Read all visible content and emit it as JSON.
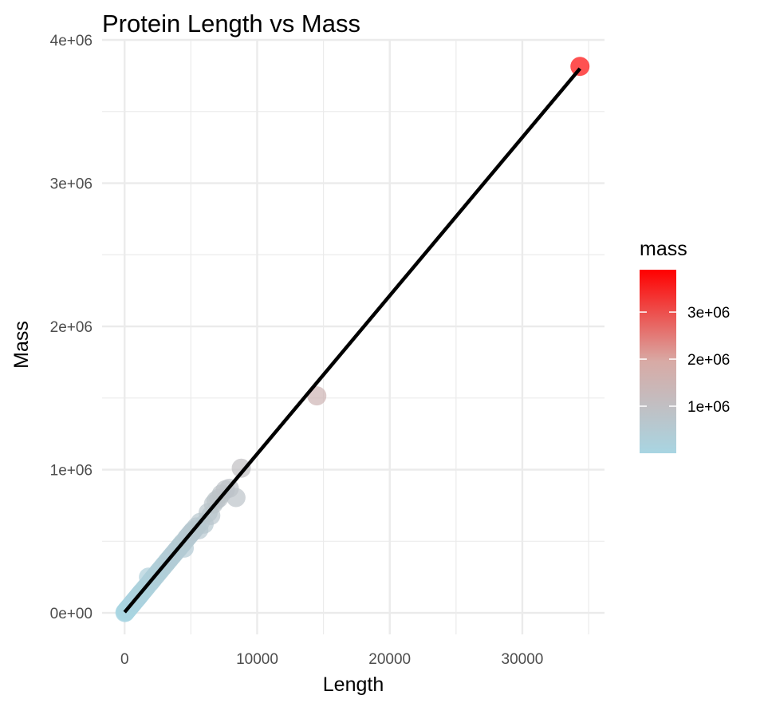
{
  "chart_data": {
    "type": "scatter",
    "title": "Protein Length vs Mass",
    "xlabel": "Length",
    "ylabel": "Mass",
    "xlim": [
      -1700,
      36200
    ],
    "ylim": [
      -150000,
      4000000
    ],
    "xticks": [
      0,
      10000,
      20000,
      30000
    ],
    "xtick_labels": [
      "0",
      "10000",
      "20000",
      "30000"
    ],
    "yticks": [
      0,
      1000000,
      2000000,
      3000000,
      4000000
    ],
    "ytick_labels": [
      "0e+00",
      "1e+06",
      "2e+06",
      "3e+06",
      "4e+06"
    ],
    "grid": true,
    "colors": {
      "low": "#a8d5e2",
      "mid": "#d8aaa5",
      "high": "#ff0000",
      "line": "#000000",
      "grid": "#ebebeb"
    },
    "legend": {
      "title": "mass",
      "placement": "right",
      "min": 0,
      "max": 3900000,
      "breaks": [
        1000000,
        2000000,
        3000000
      ],
      "labels": [
        "1e+06",
        "2e+06",
        "3e+06"
      ]
    },
    "trend_line": {
      "x": [
        0,
        34350
      ],
      "y": [
        5000,
        3800000
      ]
    },
    "points": [
      {
        "x": 20,
        "y": 2000
      },
      {
        "x": 50,
        "y": 5000
      },
      {
        "x": 80,
        "y": 9000
      },
      {
        "x": 120,
        "y": 14000
      },
      {
        "x": 160,
        "y": 18000
      },
      {
        "x": 200,
        "y": 22000
      },
      {
        "x": 250,
        "y": 28000
      },
      {
        "x": 300,
        "y": 33000
      },
      {
        "x": 350,
        "y": 39000
      },
      {
        "x": 400,
        "y": 44000
      },
      {
        "x": 450,
        "y": 50000
      },
      {
        "x": 500,
        "y": 55000
      },
      {
        "x": 550,
        "y": 61000
      },
      {
        "x": 600,
        "y": 66000
      },
      {
        "x": 650,
        "y": 72000
      },
      {
        "x": 700,
        "y": 78000
      },
      {
        "x": 750,
        "y": 83000
      },
      {
        "x": 800,
        "y": 89000
      },
      {
        "x": 850,
        "y": 94000
      },
      {
        "x": 900,
        "y": 100000
      },
      {
        "x": 950,
        "y": 105000
      },
      {
        "x": 1000,
        "y": 111000
      },
      {
        "x": 1050,
        "y": 116000
      },
      {
        "x": 1100,
        "y": 122000
      },
      {
        "x": 1150,
        "y": 128000
      },
      {
        "x": 1200,
        "y": 133000
      },
      {
        "x": 1250,
        "y": 139000
      },
      {
        "x": 1300,
        "y": 145000
      },
      {
        "x": 1400,
        "y": 155000
      },
      {
        "x": 1500,
        "y": 166000
      },
      {
        "x": 1600,
        "y": 178000
      },
      {
        "x": 1700,
        "y": 188000
      },
      {
        "x": 1800,
        "y": 250000
      },
      {
        "x": 1900,
        "y": 210000
      },
      {
        "x": 2000,
        "y": 222000
      },
      {
        "x": 2100,
        "y": 233000
      },
      {
        "x": 2200,
        "y": 245000
      },
      {
        "x": 2300,
        "y": 256000
      },
      {
        "x": 2400,
        "y": 267000
      },
      {
        "x": 2500,
        "y": 278000
      },
      {
        "x": 2600,
        "y": 290000
      },
      {
        "x": 2700,
        "y": 300000
      },
      {
        "x": 2800,
        "y": 312000
      },
      {
        "x": 2900,
        "y": 322000
      },
      {
        "x": 3000,
        "y": 335000
      },
      {
        "x": 3100,
        "y": 344000
      },
      {
        "x": 3200,
        "y": 356000
      },
      {
        "x": 3300,
        "y": 368000
      },
      {
        "x": 3400,
        "y": 378000
      },
      {
        "x": 3500,
        "y": 390000
      },
      {
        "x": 3600,
        "y": 400000
      },
      {
        "x": 3700,
        "y": 412000
      },
      {
        "x": 3800,
        "y": 422000
      },
      {
        "x": 3900,
        "y": 434000
      },
      {
        "x": 4000,
        "y": 445000
      },
      {
        "x": 4100,
        "y": 455000
      },
      {
        "x": 4200,
        "y": 468000
      },
      {
        "x": 4300,
        "y": 478000
      },
      {
        "x": 4400,
        "y": 490000
      },
      {
        "x": 4500,
        "y": 452000
      },
      {
        "x": 4600,
        "y": 510000
      },
      {
        "x": 4700,
        "y": 524000
      },
      {
        "x": 4800,
        "y": 534000
      },
      {
        "x": 4900,
        "y": 546000
      },
      {
        "x": 5000,
        "y": 556000
      },
      {
        "x": 5100,
        "y": 568000
      },
      {
        "x": 5200,
        "y": 578000
      },
      {
        "x": 5400,
        "y": 600000
      },
      {
        "x": 5600,
        "y": 580000
      },
      {
        "x": 5700,
        "y": 632000
      },
      {
        "x": 6000,
        "y": 620000
      },
      {
        "x": 6300,
        "y": 700000
      },
      {
        "x": 6500,
        "y": 680000
      },
      {
        "x": 6700,
        "y": 760000
      },
      {
        "x": 6900,
        "y": 785000
      },
      {
        "x": 7100,
        "y": 800000
      },
      {
        "x": 7300,
        "y": 830000
      },
      {
        "x": 7600,
        "y": 860000
      },
      {
        "x": 7900,
        "y": 870000
      },
      {
        "x": 8400,
        "y": 805000
      },
      {
        "x": 8800,
        "y": 1010000
      },
      {
        "x": 14500,
        "y": 1515000
      },
      {
        "x": 34350,
        "y": 3815000
      }
    ]
  }
}
